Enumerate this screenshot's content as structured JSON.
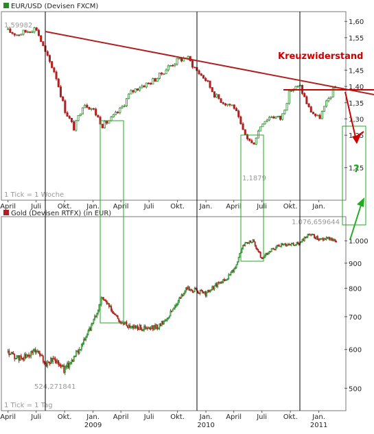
{
  "chart_data": [
    {
      "type": "candlestick",
      "title": "EUR/USD (Devisen FXCM)",
      "legend_color": "#2a8a2a",
      "up_color": "#2a8a2a",
      "down_color": "#b02020",
      "tick_note": "1 Tick = 1 Woche",
      "ylim": [
        1.05,
        1.63
      ],
      "y_ticks": [
        "1,60",
        "1,55",
        "1,45",
        "1,40",
        "1,35",
        "1,30",
        "1,25",
        "1,15"
      ],
      "y_tick_values": [
        1.6,
        1.55,
        1.45,
        1.4,
        1.35,
        1.3,
        1.25,
        1.15
      ],
      "x_ticks": [
        "April",
        "Juli",
        "Okt.",
        "Jan.",
        "April",
        "Juli",
        "Okt.",
        "Jan.",
        "April",
        "Juli",
        "Okt.",
        "Jan."
      ],
      "x_tick_dates": [
        "2008-04",
        "2008-07",
        "2008-10",
        "2009-01",
        "2009-04",
        "2009-07",
        "2009-10",
        "2010-01",
        "2010-04",
        "2010-07",
        "2010-10",
        "2011-01"
      ],
      "high_label": "1,59982",
      "low_label": "1,1879",
      "annotation_text": "Kreuzwiderstand",
      "question_mark": "?",
      "series": [
        {
          "x": [
            "2008-04",
            "2008-05",
            "2008-06",
            "2008-07",
            "2008-08",
            "2008-09",
            "2008-10",
            "2008-11",
            "2008-12",
            "2009-01",
            "2009-02",
            "2009-03",
            "2009-04",
            "2009-05",
            "2009-06",
            "2009-07",
            "2009-08",
            "2009-09",
            "2009-10",
            "2009-11",
            "2009-12",
            "2010-01",
            "2010-02",
            "2010-03",
            "2010-04",
            "2010-05",
            "2010-06",
            "2010-07",
            "2010-08",
            "2010-09",
            "2010-10",
            "2010-11",
            "2010-12",
            "2011-01",
            "2011-02",
            "2011-03"
          ],
          "values": [
            1.57,
            1.56,
            1.57,
            1.58,
            1.5,
            1.44,
            1.33,
            1.27,
            1.35,
            1.33,
            1.28,
            1.3,
            1.33,
            1.38,
            1.4,
            1.41,
            1.43,
            1.46,
            1.48,
            1.49,
            1.45,
            1.42,
            1.37,
            1.35,
            1.34,
            1.26,
            1.22,
            1.29,
            1.31,
            1.3,
            1.39,
            1.4,
            1.33,
            1.3,
            1.36,
            1.41
          ]
        }
      ]
    },
    {
      "type": "candlestick",
      "title": "Gold (Devisen RTFX) (in EUR)",
      "legend_color": "#b02020",
      "up_color": "#2a8a2a",
      "down_color": "#b02020",
      "tick_note": "1 Tick = 1 Tag",
      "log_scale": true,
      "ylim": [
        450,
        1120
      ],
      "y_ticks": [
        "1.000",
        "900",
        "800",
        "700",
        "600",
        "500"
      ],
      "y_tick_values": [
        1000,
        900,
        800,
        700,
        600,
        500
      ],
      "x_ticks": [
        "April",
        "Juli",
        "Okt.",
        "Jan.",
        "April",
        "Juli",
        "Okt.",
        "Jan.",
        "April",
        "Juli",
        "Okt.",
        "Jan."
      ],
      "x_tick_dates": [
        "2008-04",
        "2008-07",
        "2008-10",
        "2009-01",
        "2009-04",
        "2009-07",
        "2009-10",
        "2010-01",
        "2010-04",
        "2010-07",
        "2010-10",
        "2011-01"
      ],
      "year_labels": [
        "2009",
        "2010",
        "2011"
      ],
      "year_label_dates": [
        "2009-01",
        "2010-01",
        "2011-01"
      ],
      "high_label": "1.076,659644",
      "low_label": "524,271841",
      "series": [
        {
          "x": [
            "2008-04",
            "2008-05",
            "2008-06",
            "2008-07",
            "2008-08",
            "2008-09",
            "2008-10",
            "2008-11",
            "2008-12",
            "2009-01",
            "2009-02",
            "2009-03",
            "2009-04",
            "2009-05",
            "2009-06",
            "2009-07",
            "2009-08",
            "2009-09",
            "2009-10",
            "2009-11",
            "2009-12",
            "2010-01",
            "2010-02",
            "2010-03",
            "2010-04",
            "2010-05",
            "2010-06",
            "2010-07",
            "2010-08",
            "2010-09",
            "2010-10",
            "2010-11",
            "2010-12",
            "2011-01",
            "2011-02",
            "2011-03"
          ],
          "values": [
            590,
            575,
            580,
            600,
            560,
            575,
            545,
            580,
            620,
            680,
            770,
            720,
            680,
            670,
            665,
            660,
            670,
            700,
            750,
            800,
            790,
            780,
            810,
            830,
            870,
            980,
            1000,
            920,
            960,
            980,
            985,
            990,
            1030,
            1010,
            1010,
            1000
          ]
        }
      ]
    }
  ]
}
